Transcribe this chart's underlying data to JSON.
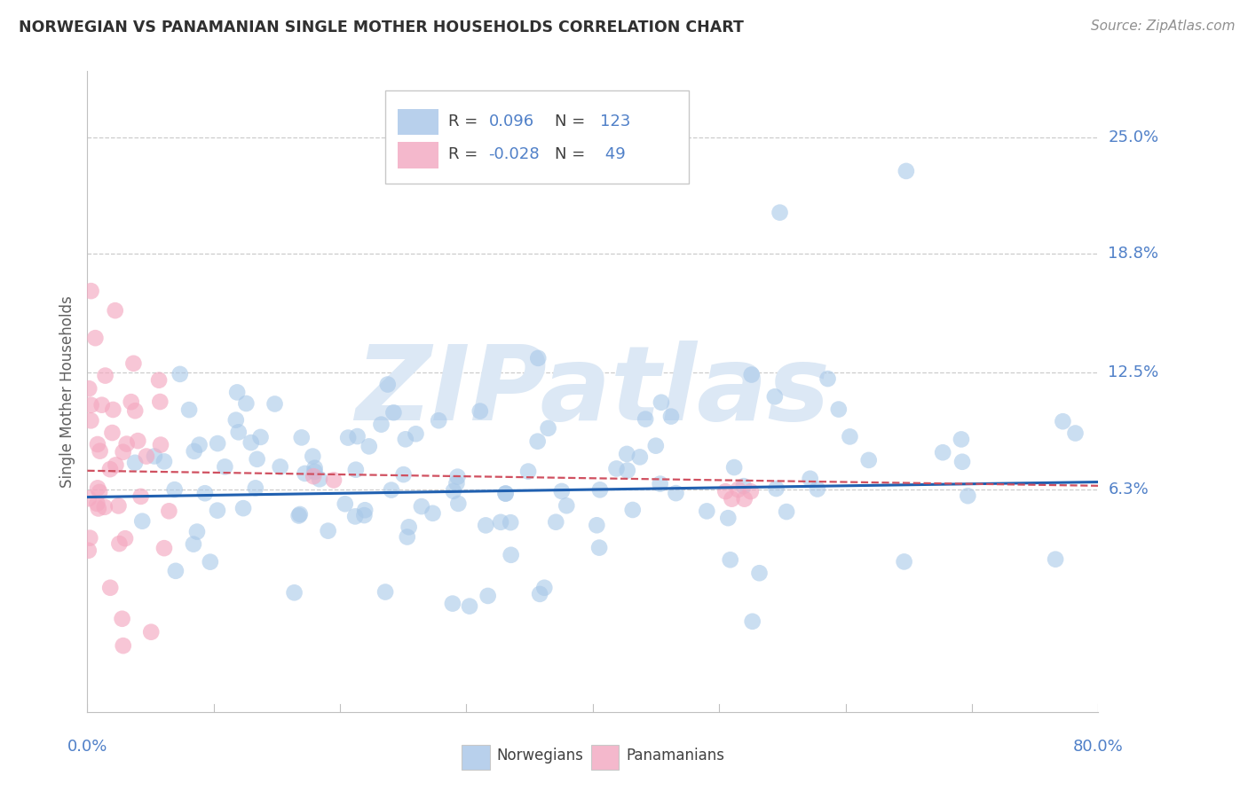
{
  "title": "NORWEGIAN VS PANAMANIAN SINGLE MOTHER HOUSEHOLDS CORRELATION CHART",
  "source": "Source: ZipAtlas.com",
  "ylabel": "Single Mother Households",
  "ytick_labels": [
    "25.0%",
    "18.8%",
    "12.5%",
    "6.3%"
  ],
  "ytick_values": [
    0.25,
    0.188,
    0.125,
    0.063
  ],
  "xmin": 0.0,
  "xmax": 0.8,
  "ymin": -0.055,
  "ymax": 0.285,
  "norwegian_R": 0.096,
  "norwegian_N": 123,
  "panamanian_R": -0.028,
  "panamanian_N": 49,
  "blue_scatter": "#a8c8e8",
  "pink_scatter": "#f4a8c0",
  "blue_line": "#2060b0",
  "pink_line": "#d05060",
  "watermark": "#dce8f5",
  "grid_color": "#cccccc",
  "label_blue": "#5080c8",
  "label_pink": "#d05060",
  "text_dark": "#404040",
  "title_color": "#303030",
  "bg": "#ffffff",
  "legend_blue_box": "#b8d0ec",
  "legend_pink_box": "#f4b8cc",
  "legend_border": "#c8c8c8",
  "spine_color": "#c0c0c0"
}
